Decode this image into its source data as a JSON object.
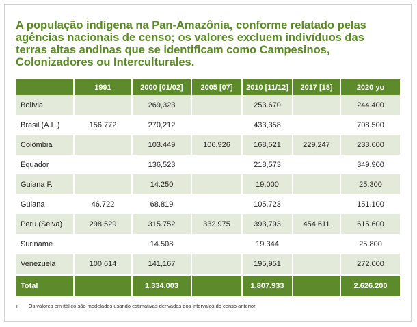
{
  "title": "A população indígena na Pan-Amazônia, conforme relatado pelas agências nacionais de censo; os valores excluem indivíduos das terras altas andinas que se identificam como Campesinos, Colonizadores ou Interculturales.",
  "table": {
    "header": [
      null,
      "1991",
      "2000 [01/02]",
      "2005 [07]",
      "2010 [11/12]",
      "2017 [18]",
      "2020 yo"
    ],
    "rows": [
      [
        "Bolívia",
        null,
        "269,323",
        null,
        "253.670",
        null,
        "244.400"
      ],
      [
        "Brasil (A.L.)",
        "156.772",
        "270,212",
        null,
        "433,358",
        null,
        "708.500"
      ],
      [
        "Colômbia",
        null,
        "103.449",
        "106,926",
        "168,521",
        "229,247",
        "233.600"
      ],
      [
        "Equador",
        null,
        "136,523",
        null,
        "218,573",
        null,
        "349.900"
      ],
      [
        "Guiana F.",
        null,
        "14.250",
        null,
        "19.000",
        null,
        "25.300"
      ],
      [
        "Guiana",
        "46.722",
        "68.819",
        null,
        "105.723",
        null,
        "151.100"
      ],
      [
        "Peru (Selva)",
        "298,529",
        "315.752",
        "332.975",
        "393,793",
        "454.611",
        "615.600"
      ],
      [
        "Suriname",
        null,
        "14.508",
        null,
        "19.344",
        null,
        "25.800"
      ],
      [
        "Venezuela",
        "100.614",
        "141,167",
        null,
        "195,951",
        null,
        "272.000"
      ]
    ],
    "total": [
      "Total",
      null,
      "1.334.003",
      null,
      "1.807.933",
      null,
      "2.626.200"
    ]
  },
  "footnote": {
    "marker": "i.",
    "text": "Os valores em itálico são modelados usando estimativas derivadas dos intervalos do censo anterior."
  }
}
